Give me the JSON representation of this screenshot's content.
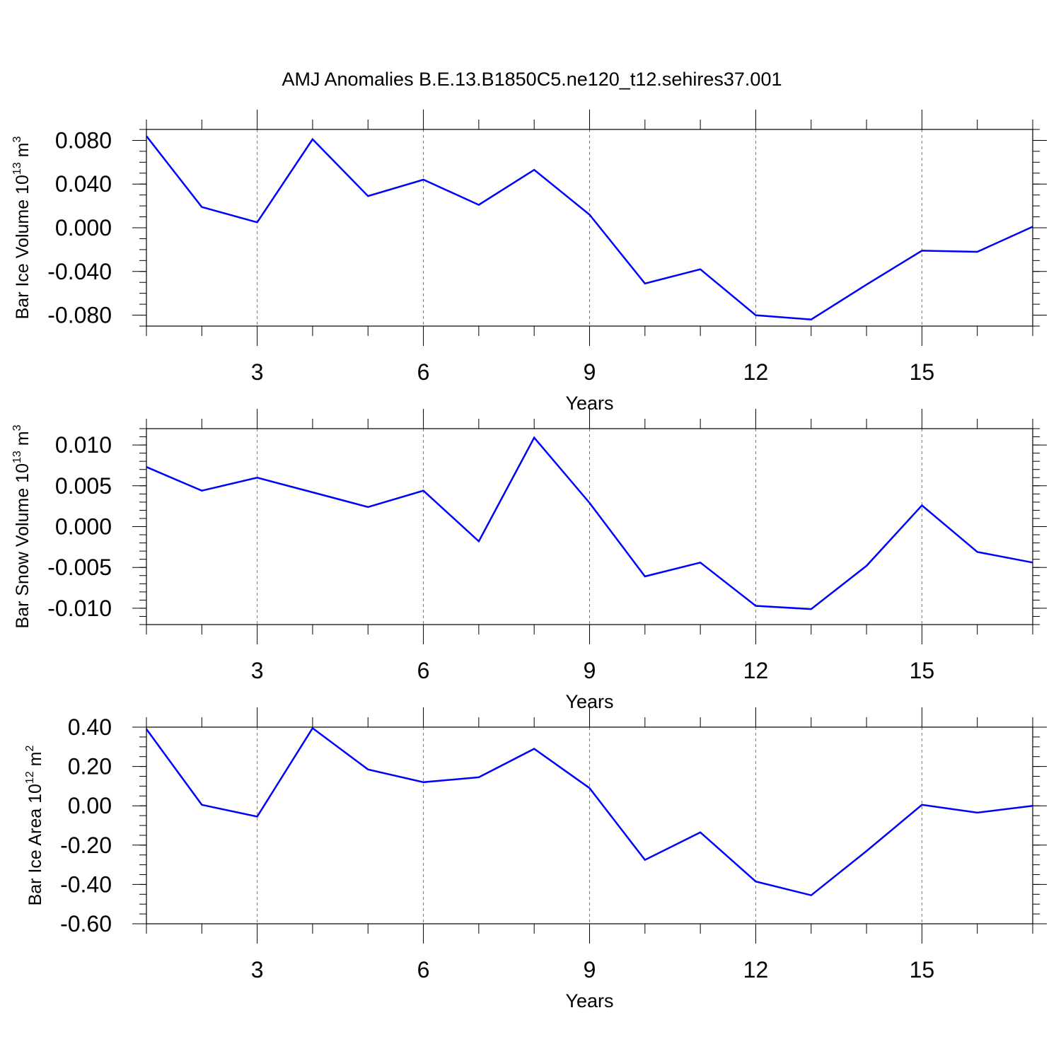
{
  "title": "AMJ Anomalies B.E.13.B1850C5.ne120_t12.sehires37.001",
  "chart_data": [
    {
      "type": "line",
      "ylabel": {
        "text": "Bar Ice Volume 10",
        "exp": "13",
        "unit": " m",
        "unit_exp": "3"
      },
      "xlabel": "Years",
      "x": [
        1,
        2,
        3,
        4,
        5,
        6,
        7,
        8,
        9,
        10,
        11,
        12,
        13,
        14,
        15,
        16,
        17
      ],
      "values": [
        0.084,
        0.019,
        0.005,
        0.081,
        0.029,
        0.044,
        0.021,
        0.053,
        0.012,
        -0.051,
        -0.038,
        -0.08,
        -0.084,
        -0.052,
        -0.021,
        -0.022,
        0.001
      ],
      "xlim": [
        1,
        17
      ],
      "ylim": [
        -0.09,
        0.09
      ],
      "yticks": [
        -0.08,
        -0.04,
        0.0,
        0.04,
        0.08
      ],
      "ytick_labels": [
        "-0.080",
        "-0.040",
        "0.000",
        "0.040",
        "0.080"
      ],
      "yminor": 0.01,
      "xticks": [
        3,
        6,
        9,
        12,
        15
      ],
      "xtick_labels": [
        "3",
        "6",
        "9",
        "12",
        "15"
      ],
      "grid": "vertical dashed at major x ticks",
      "color": "#0000ff"
    },
    {
      "type": "line",
      "ylabel": {
        "text": "Bar Snow Volume 10",
        "exp": "13",
        "unit": " m",
        "unit_exp": "3"
      },
      "xlabel": "Years",
      "x": [
        1,
        2,
        3,
        4,
        5,
        6,
        7,
        8,
        9,
        10,
        11,
        12,
        13,
        14,
        15,
        16,
        17
      ],
      "values": [
        0.0073,
        0.0044,
        0.006,
        0.0042,
        0.0024,
        0.0044,
        -0.0018,
        0.0109,
        0.0029,
        -0.0061,
        -0.0044,
        -0.0097,
        -0.0101,
        -0.0048,
        0.0026,
        -0.0031,
        -0.0044
      ],
      "xlim": [
        1,
        17
      ],
      "ylim": [
        -0.012,
        0.012
      ],
      "yticks": [
        -0.01,
        -0.005,
        0.0,
        0.005,
        0.01
      ],
      "ytick_labels": [
        "-0.010",
        "-0.005",
        "0.000",
        "0.005",
        "0.010"
      ],
      "yminor": 0.001,
      "xticks": [
        3,
        6,
        9,
        12,
        15
      ],
      "xtick_labels": [
        "3",
        "6",
        "9",
        "12",
        "15"
      ],
      "grid": "vertical dashed at major x ticks",
      "color": "#0000ff"
    },
    {
      "type": "line",
      "ylabel": {
        "text": "Bar Ice Area 10",
        "exp": "12",
        "unit": " m",
        "unit_exp": "2"
      },
      "xlabel": "Years",
      "x": [
        1,
        2,
        3,
        4,
        5,
        6,
        7,
        8,
        9,
        10,
        11,
        12,
        13,
        14,
        15,
        16,
        17
      ],
      "values": [
        0.39,
        0.005,
        -0.055,
        0.395,
        0.185,
        0.12,
        0.145,
        0.29,
        0.09,
        -0.275,
        -0.135,
        -0.385,
        -0.455,
        -0.23,
        0.005,
        -0.035,
        0.0
      ],
      "xlim": [
        1,
        17
      ],
      "ylim": [
        -0.6,
        0.4
      ],
      "yticks": [
        -0.6,
        -0.4,
        -0.2,
        0.0,
        0.2,
        0.4
      ],
      "ytick_labels": [
        "-0.60",
        "-0.40",
        "-0.20",
        "0.00",
        "0.20",
        "0.40"
      ],
      "yminor": 0.05,
      "xticks": [
        3,
        6,
        9,
        12,
        15
      ],
      "xtick_labels": [
        "3",
        "6",
        "9",
        "12",
        "15"
      ],
      "grid": "vertical dashed at major x ticks",
      "color": "#0000ff"
    }
  ]
}
